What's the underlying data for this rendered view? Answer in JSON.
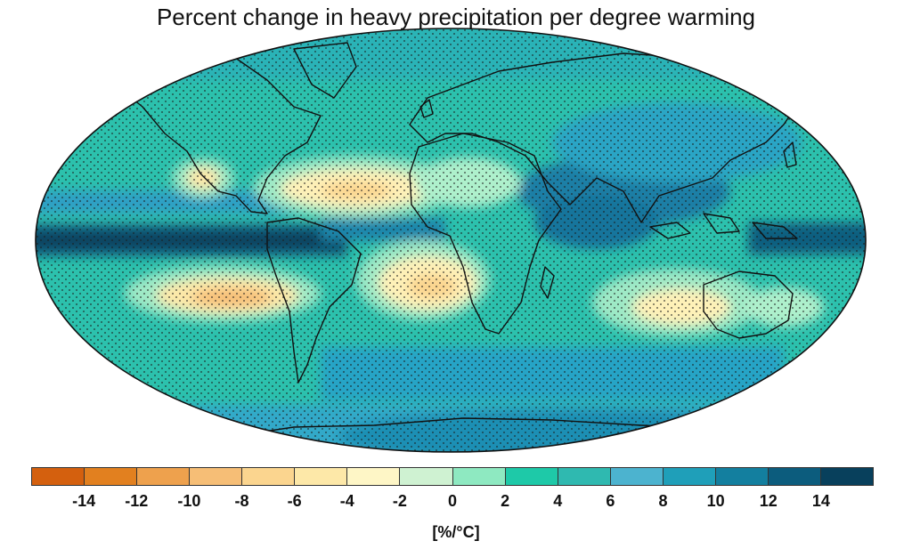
{
  "title": "Percent change in heavy precipitation per degree warming",
  "map": {
    "projection": "Robinson",
    "stippling": true,
    "coastlines": true
  },
  "colorbar": {
    "colors": [
      "#d4600e",
      "#e2801f",
      "#eea14d",
      "#f6be76",
      "#fbd58f",
      "#fde8a8",
      "#fef6c6",
      "#cff2d2",
      "#8ee9c1",
      "#1ec9a8",
      "#2fb9b0",
      "#4cb3cf",
      "#1f9fb9",
      "#137f9f",
      "#0c5c7d",
      "#08405c"
    ],
    "tick_labels": [
      "-14",
      "-12",
      "-10",
      "-8",
      "-6",
      "-4",
      "-2",
      "0",
      "2",
      "4",
      "6",
      "8",
      "10",
      "12",
      "14"
    ],
    "unit_label": "[%/°C]"
  }
}
